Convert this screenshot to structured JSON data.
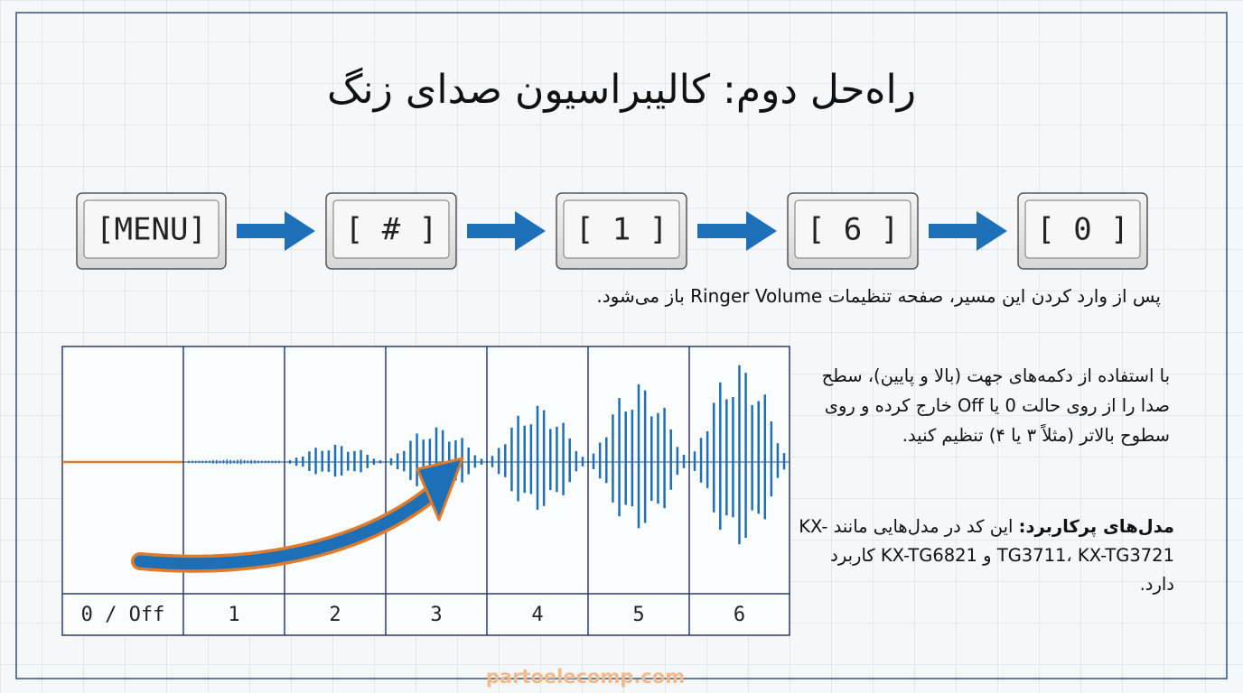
{
  "title": "راه‌حل دوم: کالیبراسیون صدای زنگ",
  "keys": [
    "[MENU]",
    "[ # ]",
    "[ 1 ]",
    "[ 6 ]",
    "[ 0 ]"
  ],
  "caption": "پس از وارد کردن این مسیر، صفحه تنظیمات Ringer Volume باز می‌شود.",
  "levels": [
    "0 / Off",
    "1",
    "2",
    "3",
    "4",
    "5",
    "6"
  ],
  "instruction": "با استفاده از دکمه‌های جهت (بالا و پایین)، سطح صدا را از روی حالت 0 یا Off خارج کرده و روی سطوح بالاتر (مثلاً ۳ یا ۴) تنظیم کنید.",
  "models": {
    "label": "مدل‌های پرکاربرد:",
    "text": " این کد در مدل‌هایی مانند KX-TG3711، KX-TG3721 و KX-TG6821 کاربرد دارد."
  },
  "watermark": "partoelecomp.com"
}
